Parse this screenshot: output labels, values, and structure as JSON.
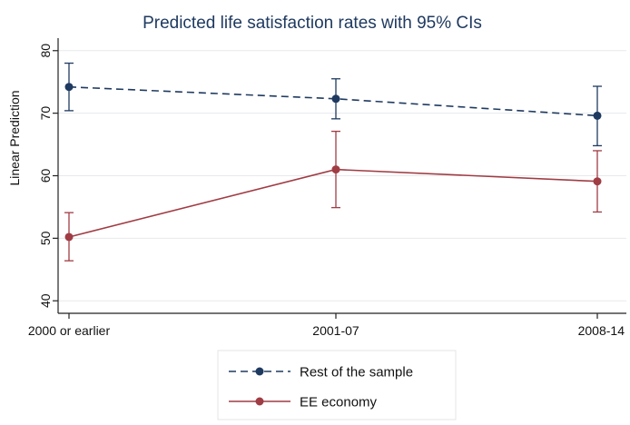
{
  "chart_data": {
    "type": "line",
    "title": "Predicted life satisfaction rates with 95% CIs",
    "xlabel": "",
    "ylabel": "Linear Prediction",
    "categories": [
      "2000 or earlier",
      "2001-07",
      "2008-14"
    ],
    "ylim": [
      38,
      82
    ],
    "yticks": [
      40,
      50,
      60,
      70,
      80
    ],
    "grid": true,
    "legend_position": "bottom",
    "series": [
      {
        "name": "Rest of the sample",
        "values": [
          74.2,
          72.3,
          69.6
        ],
        "ci_low": [
          70.4,
          69.1,
          64.8
        ],
        "ci_high": [
          78.0,
          75.5,
          74.3
        ],
        "color": "#1f3a60",
        "dash": true
      },
      {
        "name": "EE economy",
        "values": [
          50.2,
          61.0,
          59.1
        ],
        "ci_low": [
          46.4,
          54.9,
          54.2
        ],
        "ci_high": [
          54.1,
          67.1,
          64.0
        ],
        "color": "#a03c44",
        "dash": false
      }
    ]
  }
}
